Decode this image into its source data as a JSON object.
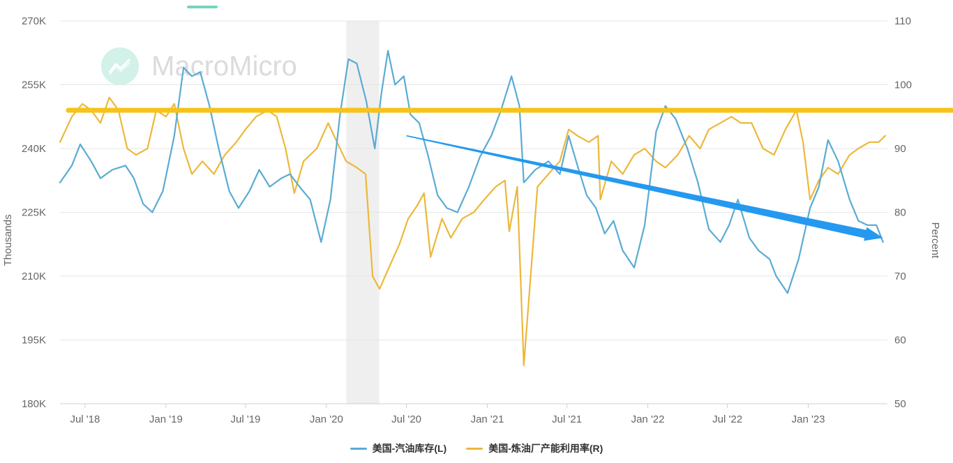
{
  "watermark": {
    "text": "MacroMicro",
    "icon": "chart-logo-icon"
  },
  "colors": {
    "gasoline": "#5aabd4",
    "utilization": "#ecb83a",
    "refline": "#f7c21a",
    "trendarrow": "#2499ef",
    "recession": "#e9e9e9",
    "grid": "#e6e6e6",
    "accent": "#74d6bf"
  },
  "legend": [
    {
      "label": "美国-汽油库存(L)",
      "color": "#5aabd4"
    },
    {
      "label": "美国-炼油厂产能利用率(R)",
      "color": "#ecb83a"
    }
  ],
  "chart_data": {
    "type": "line",
    "x_range": [
      "2018-05-05",
      "2023-06-30"
    ],
    "x_ticks": [
      {
        "date": "2018-07-01",
        "label": "Jul '18"
      },
      {
        "date": "2019-01-01",
        "label": "Jan '19"
      },
      {
        "date": "2019-07-01",
        "label": "Jul '19"
      },
      {
        "date": "2020-01-01",
        "label": "Jan '20"
      },
      {
        "date": "2020-07-01",
        "label": "Jul '20"
      },
      {
        "date": "2021-01-01",
        "label": "Jan '21"
      },
      {
        "date": "2021-07-01",
        "label": "Jul '21"
      },
      {
        "date": "2022-01-01",
        "label": "Jan '22"
      },
      {
        "date": "2022-07-01",
        "label": "Jul '22"
      },
      {
        "date": "2023-01-01",
        "label": "Jan '23"
      }
    ],
    "y_left": {
      "label": "Thousands",
      "min": 180000,
      "max": 270000,
      "ticks": [
        180000,
        195000,
        210000,
        225000,
        240000,
        255000,
        270000
      ],
      "tick_labels": [
        "180K",
        "195K",
        "210K",
        "225K",
        "240K",
        "255K",
        "270K"
      ]
    },
    "y_right": {
      "label": "Percent",
      "min": 50,
      "max": 110,
      "ticks": [
        50,
        60,
        70,
        80,
        90,
        100,
        110
      ],
      "tick_labels": [
        "50",
        "60",
        "70",
        "80",
        "90",
        "100",
        "110"
      ]
    },
    "grid": true,
    "shaded_periods": [
      {
        "start": "2020-02-15",
        "end": "2020-04-30"
      }
    ],
    "reference_lines": [
      {
        "axis": "right",
        "value": 96
      }
    ],
    "annotation_arrows": [
      {
        "from": {
          "date": "2020-07-01",
          "left_value": 243000
        },
        "to": {
          "date": "2023-06-20",
          "left_value": 219000
        }
      }
    ],
    "series": [
      {
        "name": "美国-汽油库存(L)",
        "axis": "left",
        "points": [
          [
            "2018-05-05",
            232000
          ],
          [
            "2018-06-01",
            236000
          ],
          [
            "2018-06-20",
            241000
          ],
          [
            "2018-07-15",
            237000
          ],
          [
            "2018-08-05",
            233000
          ],
          [
            "2018-09-01",
            235000
          ],
          [
            "2018-10-01",
            236000
          ],
          [
            "2018-10-20",
            233000
          ],
          [
            "2018-11-10",
            227000
          ],
          [
            "2018-12-01",
            225000
          ],
          [
            "2018-12-25",
            230000
          ],
          [
            "2019-01-20",
            243000
          ],
          [
            "2019-02-10",
            259000
          ],
          [
            "2019-03-01",
            257000
          ],
          [
            "2019-03-20",
            258000
          ],
          [
            "2019-04-10",
            250000
          ],
          [
            "2019-05-01",
            240000
          ],
          [
            "2019-05-25",
            230000
          ],
          [
            "2019-06-15",
            226000
          ],
          [
            "2019-07-10",
            230000
          ],
          [
            "2019-08-01",
            235000
          ],
          [
            "2019-08-25",
            231000
          ],
          [
            "2019-09-20",
            233000
          ],
          [
            "2019-10-10",
            234000
          ],
          [
            "2019-11-01",
            231000
          ],
          [
            "2019-11-25",
            228000
          ],
          [
            "2019-12-20",
            218000
          ],
          [
            "2020-01-10",
            228000
          ],
          [
            "2020-02-01",
            248000
          ],
          [
            "2020-02-20",
            261000
          ],
          [
            "2020-03-10",
            260000
          ],
          [
            "2020-04-01",
            251000
          ],
          [
            "2020-04-20",
            240000
          ],
          [
            "2020-05-05",
            253000
          ],
          [
            "2020-05-20",
            263000
          ],
          [
            "2020-06-05",
            255000
          ],
          [
            "2020-06-25",
            257000
          ],
          [
            "2020-07-10",
            248000
          ],
          [
            "2020-07-30",
            246000
          ],
          [
            "2020-08-20",
            238000
          ],
          [
            "2020-09-10",
            229000
          ],
          [
            "2020-10-01",
            226000
          ],
          [
            "2020-10-25",
            225000
          ],
          [
            "2020-11-20",
            231000
          ],
          [
            "2020-12-15",
            238000
          ],
          [
            "2021-01-10",
            243000
          ],
          [
            "2021-02-01",
            249000
          ],
          [
            "2021-02-25",
            257000
          ],
          [
            "2021-03-15",
            250000
          ],
          [
            "2021-03-25",
            232000
          ],
          [
            "2021-04-20",
            235000
          ],
          [
            "2021-05-20",
            237000
          ],
          [
            "2021-06-15",
            234000
          ],
          [
            "2021-07-05",
            243000
          ],
          [
            "2021-07-25",
            236000
          ],
          [
            "2021-08-15",
            229000
          ],
          [
            "2021-09-05",
            226000
          ],
          [
            "2021-09-25",
            220000
          ],
          [
            "2021-10-15",
            223000
          ],
          [
            "2021-11-05",
            216000
          ],
          [
            "2021-12-01",
            212000
          ],
          [
            "2021-12-25",
            222000
          ],
          [
            "2022-01-20",
            244000
          ],
          [
            "2022-02-10",
            250000
          ],
          [
            "2022-03-05",
            247000
          ],
          [
            "2022-04-01",
            240000
          ],
          [
            "2022-04-25",
            232000
          ],
          [
            "2022-05-20",
            221000
          ],
          [
            "2022-06-15",
            218000
          ],
          [
            "2022-07-05",
            222000
          ],
          [
            "2022-07-25",
            228000
          ],
          [
            "2022-08-20",
            219000
          ],
          [
            "2022-09-10",
            216000
          ],
          [
            "2022-10-05",
            214000
          ],
          [
            "2022-10-20",
            210000
          ],
          [
            "2022-11-15",
            206000
          ],
          [
            "2022-12-10",
            214000
          ],
          [
            "2023-01-05",
            226000
          ],
          [
            "2023-01-25",
            231000
          ],
          [
            "2023-02-15",
            242000
          ],
          [
            "2023-03-10",
            237000
          ],
          [
            "2023-04-05",
            228000
          ],
          [
            "2023-04-25",
            223000
          ],
          [
            "2023-05-15",
            222000
          ],
          [
            "2023-06-05",
            222000
          ],
          [
            "2023-06-20",
            218000
          ]
        ]
      },
      {
        "name": "美国-炼油厂产能利用率(R)",
        "axis": "right",
        "points": [
          [
            "2018-05-05",
            91
          ],
          [
            "2018-06-01",
            95
          ],
          [
            "2018-06-25",
            97
          ],
          [
            "2018-07-15",
            96
          ],
          [
            "2018-08-05",
            94
          ],
          [
            "2018-08-25",
            98
          ],
          [
            "2018-09-15",
            96
          ],
          [
            "2018-10-05",
            90
          ],
          [
            "2018-10-25",
            89
          ],
          [
            "2018-11-20",
            90
          ],
          [
            "2018-12-10",
            96
          ],
          [
            "2019-01-01",
            95
          ],
          [
            "2019-01-20",
            97
          ],
          [
            "2019-02-10",
            90
          ],
          [
            "2019-03-01",
            86
          ],
          [
            "2019-03-25",
            88
          ],
          [
            "2019-04-20",
            86
          ],
          [
            "2019-05-15",
            89
          ],
          [
            "2019-06-10",
            91
          ],
          [
            "2019-07-01",
            93
          ],
          [
            "2019-07-25",
            95
          ],
          [
            "2019-08-20",
            96
          ],
          [
            "2019-09-10",
            95
          ],
          [
            "2019-09-30",
            90
          ],
          [
            "2019-10-20",
            83
          ],
          [
            "2019-11-10",
            88
          ],
          [
            "2019-12-10",
            90
          ],
          [
            "2020-01-05",
            94
          ],
          [
            "2020-01-25",
            91
          ],
          [
            "2020-02-15",
            88
          ],
          [
            "2020-03-10",
            87
          ],
          [
            "2020-03-30",
            86
          ],
          [
            "2020-04-15",
            70
          ],
          [
            "2020-05-01",
            68
          ],
          [
            "2020-05-20",
            71
          ],
          [
            "2020-06-15",
            75
          ],
          [
            "2020-07-05",
            79
          ],
          [
            "2020-07-25",
            81
          ],
          [
            "2020-08-10",
            83
          ],
          [
            "2020-08-25",
            73
          ],
          [
            "2020-09-20",
            79
          ],
          [
            "2020-10-10",
            76
          ],
          [
            "2020-11-05",
            79
          ],
          [
            "2020-12-01",
            80
          ],
          [
            "2020-12-25",
            82
          ],
          [
            "2021-01-20",
            84
          ],
          [
            "2021-02-10",
            85
          ],
          [
            "2021-02-20",
            77
          ],
          [
            "2021-03-10",
            84
          ],
          [
            "2021-03-25",
            56
          ],
          [
            "2021-04-25",
            84
          ],
          [
            "2021-05-20",
            86
          ],
          [
            "2021-06-15",
            88
          ],
          [
            "2021-07-05",
            93
          ],
          [
            "2021-07-25",
            92
          ],
          [
            "2021-08-20",
            91
          ],
          [
            "2021-09-10",
            92
          ],
          [
            "2021-09-15",
            82
          ],
          [
            "2021-10-10",
            88
          ],
          [
            "2021-11-05",
            86
          ],
          [
            "2021-12-01",
            89
          ],
          [
            "2021-12-25",
            90
          ],
          [
            "2022-01-20",
            88
          ],
          [
            "2022-02-10",
            87
          ],
          [
            "2022-03-10",
            89
          ],
          [
            "2022-04-05",
            92
          ],
          [
            "2022-04-30",
            90
          ],
          [
            "2022-05-20",
            93
          ],
          [
            "2022-06-15",
            94
          ],
          [
            "2022-07-10",
            95
          ],
          [
            "2022-08-01",
            94
          ],
          [
            "2022-08-25",
            94
          ],
          [
            "2022-09-20",
            90
          ],
          [
            "2022-10-15",
            89
          ],
          [
            "2022-11-10",
            93
          ],
          [
            "2022-12-05",
            96
          ],
          [
            "2022-12-20",
            91
          ],
          [
            "2023-01-05",
            82
          ],
          [
            "2023-01-25",
            85
          ],
          [
            "2023-02-15",
            87
          ],
          [
            "2023-03-10",
            86
          ],
          [
            "2023-04-05",
            89
          ],
          [
            "2023-04-25",
            90
          ],
          [
            "2023-05-20",
            91
          ],
          [
            "2023-06-10",
            91
          ],
          [
            "2023-06-25",
            92
          ]
        ]
      }
    ]
  }
}
